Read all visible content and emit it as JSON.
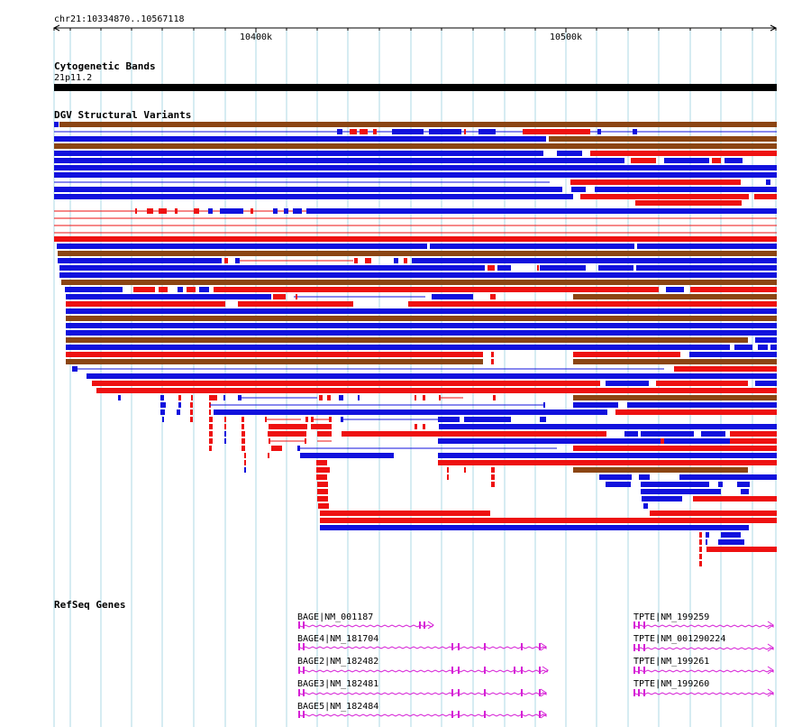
{
  "ruler": {
    "region_label": "chr21:10334870..10567118",
    "start": 10334870,
    "end": 10567118,
    "tick_labels": [
      "10400k",
      "10500k"
    ]
  },
  "tracks": {
    "cyto": {
      "title": "Cytogenetic Bands",
      "band_label": "21p11.2"
    },
    "dgv": {
      "title": "DGV Structural Variants"
    },
    "refseq": {
      "title": "RefSeq Genes"
    }
  },
  "colors": {
    "loss": "#ee1111",
    "gain": "#1111dd",
    "both": "#8b4513",
    "gene": "#d61fd6",
    "grid": "#add8e6",
    "band": "#000000"
  },
  "genes": [
    {
      "label": "BAGE|NM_001187"
    },
    {
      "label": "BAGE4|NM_181704"
    },
    {
      "label": "BAGE2|NM_182482"
    },
    {
      "label": "BAGE3|NM_182481"
    },
    {
      "label": "BAGE5|NM_182484"
    },
    {
      "label": "TPTE|NM_199259"
    },
    {
      "label": "TPTE|NM_001290224"
    },
    {
      "label": "TPTE|NM_199261"
    },
    {
      "label": "TPTE|NM_199260"
    }
  ]
}
